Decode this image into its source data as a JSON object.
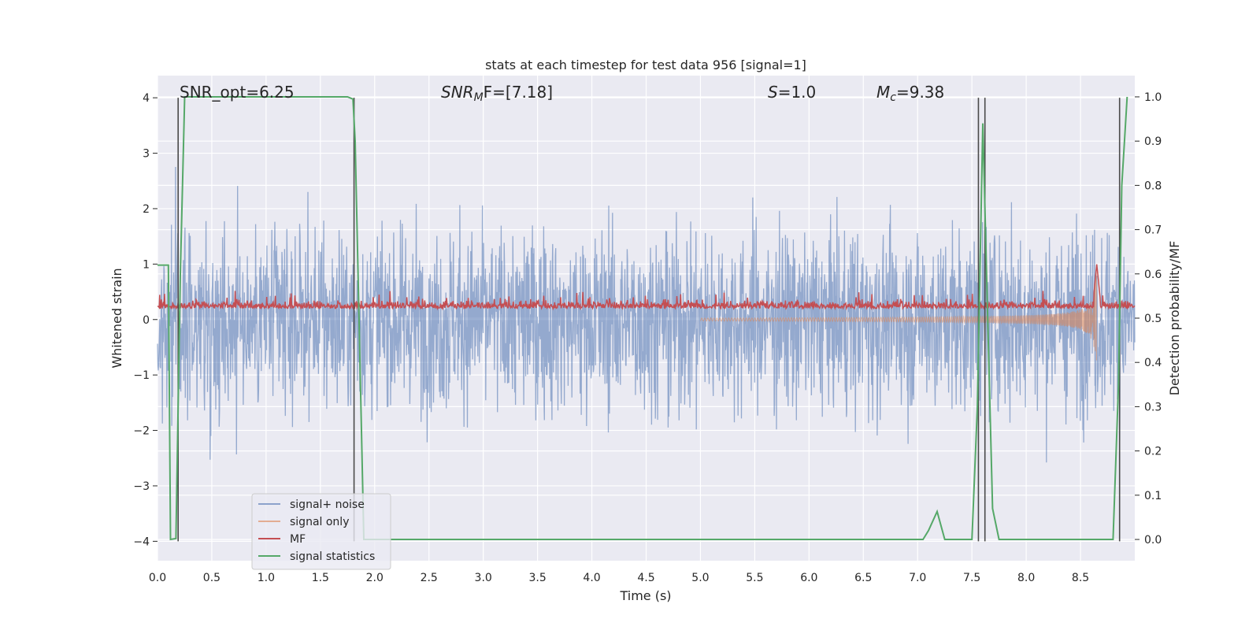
{
  "chart_data": {
    "type": "line",
    "title": "stats at each timestep for test data 956 [signal=1]",
    "xlabel": "Time (s)",
    "ylabel": "Whitened strain",
    "ylabel_right": "Detection probability/MF",
    "xlim": [
      0.0,
      9.0
    ],
    "ylim": [
      -4.35,
      4.4
    ],
    "ylim_right": [
      -0.048,
      1.048
    ],
    "x_ticks": [
      "0.0",
      "0.5",
      "1.0",
      "1.5",
      "2.0",
      "2.5",
      "3.0",
      "3.5",
      "4.0",
      "4.5",
      "5.0",
      "5.5",
      "6.0",
      "6.5",
      "7.0",
      "7.5",
      "8.0",
      "8.5"
    ],
    "y_ticks": [
      "4",
      "3",
      "2",
      "1",
      "0",
      "−1",
      "−2",
      "−3",
      "−4"
    ],
    "y_ticks_right": [
      "1.0",
      "0.9",
      "0.8",
      "0.7",
      "0.6",
      "0.5",
      "0.4",
      "0.3",
      "0.2",
      "0.1",
      "0.0"
    ],
    "grid": true,
    "legend_position": "bottom-left",
    "annotations": [
      {
        "text": "SNR_opt=6.25",
        "x": 0.2
      },
      {
        "text": "SNR_MF=[7.18]",
        "x": 2.6
      },
      {
        "text": "S=1.0",
        "x": 5.6
      },
      {
        "text": "M_c=9.38",
        "x": 6.6
      }
    ],
    "annotation_parts": {
      "snr_opt": "SNR_opt=6.25",
      "snr_mf_main": "SNR",
      "snr_mf_sub": "M",
      "snr_mf_rest": "F=[7.18]",
      "s_main": "S",
      "s_rest": "=1.0",
      "mc_main": "M",
      "mc_sub": "c",
      "mc_rest": "=9.38"
    },
    "series": [
      {
        "name": "signal+ noise",
        "color": "#4c72b0",
        "axis": "left",
        "style": "noise",
        "amplitude_approx": 3.5
      },
      {
        "name": "signal only",
        "color": "#dd8452",
        "axis": "left",
        "style": "chirp",
        "x_peak": 8.65,
        "peak": [
          -0.9,
          1.0
        ]
      },
      {
        "name": "MF",
        "color": "#c44e52",
        "axis": "left",
        "style": "mf",
        "baseline": 0.2,
        "spike_x": 8.65,
        "spike_y": 1.0
      },
      {
        "name": "signal statistics",
        "color": "#55a868",
        "axis": "right",
        "x": [
          0.0,
          0.05,
          0.1,
          0.12,
          0.17,
          0.21,
          0.25,
          0.5,
          1.0,
          1.5,
          1.75,
          1.8,
          1.82,
          1.9,
          2.5,
          3.0,
          4.0,
          5.0,
          6.0,
          7.0,
          7.05,
          7.1,
          7.18,
          7.25,
          7.4,
          7.5,
          7.55,
          7.6,
          7.64,
          7.69,
          7.75,
          8.0,
          8.5,
          8.8,
          8.85,
          8.88,
          8.93
        ],
        "y": [
          0.62,
          0.62,
          0.62,
          0.0,
          0.002,
          0.6,
          1.0,
          1.0,
          1.0,
          1.0,
          1.0,
          0.995,
          0.9,
          0.0,
          0.0,
          0.0,
          0.0,
          0.0,
          0.0,
          0.0,
          0.0,
          0.02,
          0.063,
          0.0,
          0.0,
          0.0,
          0.3,
          0.94,
          0.55,
          0.07,
          0.0,
          0.0,
          0.0,
          0.0,
          0.35,
          0.8,
          1.0
        ]
      }
    ],
    "vertical_lines_x": [
      0.19,
      1.81,
      7.56,
      7.62,
      8.86
    ],
    "legend": [
      {
        "label": "signal+ noise",
        "color": "#4c72b0"
      },
      {
        "label": "signal only",
        "color": "#dd8452"
      },
      {
        "label": "MF",
        "color": "#c44e52"
      },
      {
        "label": "signal statistics",
        "color": "#55a868"
      }
    ]
  }
}
